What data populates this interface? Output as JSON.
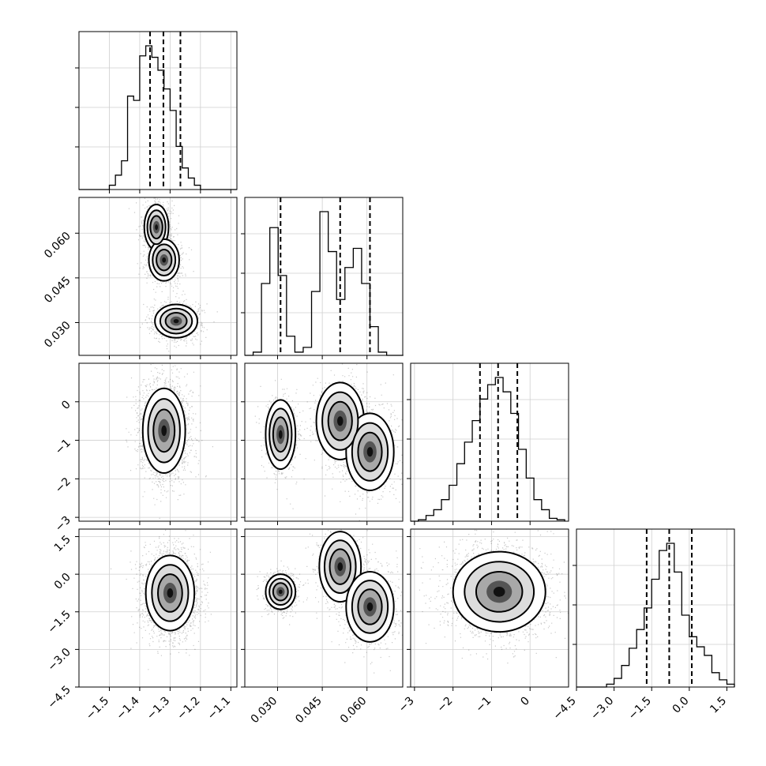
{
  "chart_data": {
    "type": "corner",
    "title": "",
    "parameters": [
      {
        "label": "",
        "range": [
          -1.6,
          -1.08
        ],
        "ticks": [
          -1.5,
          -1.4,
          -1.3,
          -1.2,
          -1.1
        ],
        "tick_labels": [
          "−1.5",
          "−1.4",
          "−1.3",
          "−1.2",
          "−1.1"
        ],
        "quantiles": [
          -1.366,
          -1.322,
          -1.266
        ],
        "histogram": {
          "bins": [
            -1.6,
            -1.58,
            -1.56,
            -1.54,
            -1.52,
            -1.5,
            -1.48,
            -1.46,
            -1.44,
            -1.42,
            -1.4,
            -1.38,
            -1.36,
            -1.34,
            -1.32,
            -1.3,
            -1.28,
            -1.26,
            -1.24,
            -1.22,
            -1.2,
            -1.18,
            -1.16,
            -1.14,
            -1.12,
            -1.1,
            -1.08
          ],
          "counts": [
            0,
            0,
            0,
            0,
            0,
            3,
            10,
            20,
            65,
            62,
            93,
            100,
            92,
            83,
            70,
            55,
            30,
            15,
            8,
            3,
            0,
            0,
            0,
            0,
            0,
            0
          ]
        }
      },
      {
        "label": "",
        "range": [
          0.019,
          0.072
        ],
        "ticks": [
          0.03,
          0.045,
          0.06
        ],
        "tick_labels": [
          "0.030",
          "0.045",
          "0.060"
        ],
        "quantiles": [
          0.031,
          0.051,
          0.061
        ],
        "histogram": {
          "bins": [
            0.019,
            0.0218,
            0.0246,
            0.0274,
            0.0302,
            0.033,
            0.0358,
            0.0386,
            0.0414,
            0.0442,
            0.047,
            0.0498,
            0.0526,
            0.0554,
            0.0582,
            0.061,
            0.0638,
            0.0666,
            0.0694,
            0.0722
          ],
          "counts": [
            0,
            2,
            45,
            80,
            50,
            12,
            2,
            5,
            40,
            90,
            65,
            35,
            55,
            67,
            45,
            18,
            2,
            0,
            0
          ]
        }
      },
      {
        "label": "",
        "range": [
          -3.1,
          1.0
        ],
        "ticks": [
          -3,
          -2,
          -1,
          0
        ],
        "tick_labels": [
          "−3",
          "−2",
          "−1",
          "0"
        ],
        "quantiles": [
          -1.3,
          -0.83,
          -0.33
        ],
        "histogram": {
          "bins": [
            -3.1,
            -2.9,
            -2.7,
            -2.5,
            -2.3,
            -2.1,
            -1.9,
            -1.7,
            -1.5,
            -1.3,
            -1.1,
            -0.9,
            -0.7,
            -0.5,
            -0.3,
            -0.1,
            0.1,
            0.3,
            0.5,
            0.7,
            0.9
          ],
          "counts": [
            0,
            1,
            4,
            8,
            15,
            25,
            40,
            55,
            70,
            85,
            95,
            100,
            90,
            75,
            50,
            30,
            15,
            8,
            2,
            1
          ]
        }
      },
      {
        "label": "",
        "range": [
          -4.5,
          1.8
        ],
        "ticks": [
          -4.5,
          -3.0,
          -1.5,
          0.0,
          1.5
        ],
        "tick_labels": [
          "−4.5",
          "−3.0",
          "−1.5",
          "0.0",
          "1.5"
        ],
        "quantiles": [
          -1.7,
          -0.8,
          0.1
        ],
        "histogram": {
          "bins": [
            -4.5,
            -4.2,
            -3.9,
            -3.6,
            -3.3,
            -3.0,
            -2.7,
            -2.4,
            -2.1,
            -1.8,
            -1.5,
            -1.2,
            -0.9,
            -0.6,
            -0.3,
            0.0,
            0.3,
            0.6,
            0.9,
            1.2,
            1.5,
            1.8
          ],
          "counts": [
            0,
            0,
            0,
            0,
            2,
            6,
            15,
            27,
            40,
            55,
            75,
            95,
            100,
            80,
            50,
            35,
            28,
            22,
            10,
            5,
            2
          ]
        }
      }
    ],
    "y_tick_labels": {
      "row1": [
        "0.030",
        "0.045",
        "0.060"
      ],
      "row2": [
        "−3",
        "−2",
        "−1",
        "0"
      ],
      "row3": [
        "−4.5",
        "−3.0",
        "−1.5",
        "0.0",
        "1.5"
      ]
    },
    "clusters": {
      "p1_p2": [
        {
          "center": [
            -1.345,
            0.062
          ],
          "sd": [
            0.02,
            0.0038
          ],
          "weight": 0.35
        },
        {
          "center": [
            -1.32,
            0.051
          ],
          "sd": [
            0.025,
            0.0035
          ],
          "weight": 0.32
        },
        {
          "center": [
            -1.28,
            0.0305
          ],
          "sd": [
            0.035,
            0.0028
          ],
          "weight": 0.33
        }
      ],
      "p1_p3": [
        {
          "center": [
            -1.32,
            -0.75
          ],
          "sd": [
            0.035,
            0.55
          ],
          "weight": 1.0
        }
      ],
      "p2_p3": [
        {
          "center": [
            0.031,
            -0.85
          ],
          "sd": [
            0.0025,
            0.45
          ],
          "weight": 0.3
        },
        {
          "center": [
            0.051,
            -0.5
          ],
          "sd": [
            0.004,
            0.5
          ],
          "weight": 0.35
        },
        {
          "center": [
            0.061,
            -1.3
          ],
          "sd": [
            0.004,
            0.5
          ],
          "weight": 0.35
        }
      ],
      "p1_p4": [
        {
          "center": [
            -1.3,
            -0.75
          ],
          "sd": [
            0.04,
            0.75
          ],
          "weight": 1.0
        }
      ],
      "p2_p4": [
        {
          "center": [
            0.031,
            -0.7
          ],
          "sd": [
            0.0025,
            0.35
          ],
          "weight": 0.32
        },
        {
          "center": [
            0.051,
            0.3
          ],
          "sd": [
            0.0035,
            0.7
          ],
          "weight": 0.32
        },
        {
          "center": [
            0.061,
            -1.3
          ],
          "sd": [
            0.004,
            0.7
          ],
          "weight": 0.36
        }
      ],
      "p3_p4": [
        {
          "center": [
            -0.8,
            -0.7
          ],
          "sd": [
            0.6,
            0.8
          ],
          "weight": 1.0
        }
      ]
    },
    "grid": true,
    "legend": "none"
  }
}
